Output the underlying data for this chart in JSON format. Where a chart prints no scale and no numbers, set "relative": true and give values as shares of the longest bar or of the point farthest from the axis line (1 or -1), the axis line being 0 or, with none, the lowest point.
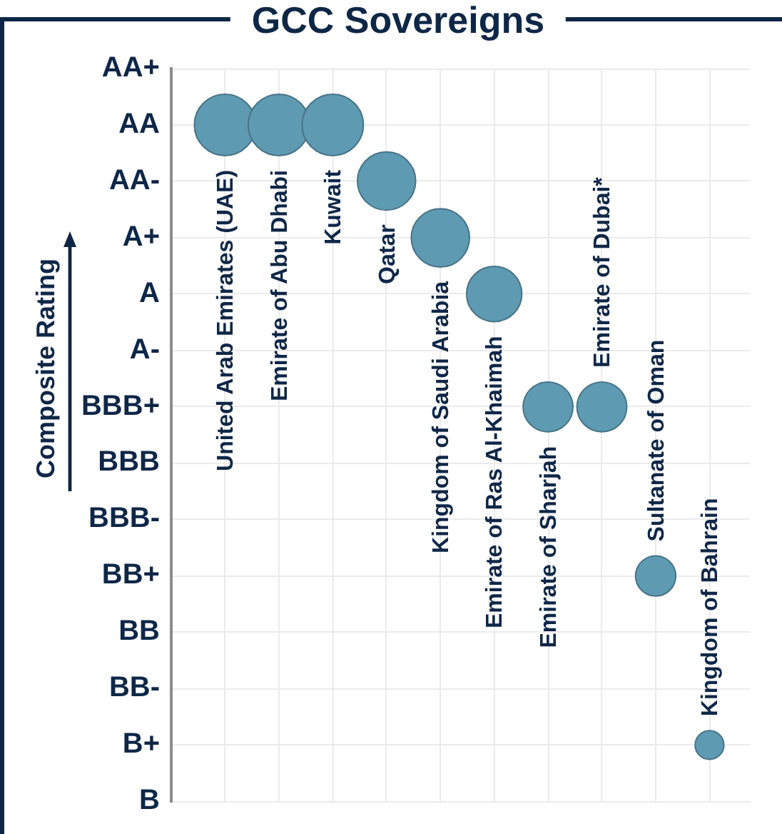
{
  "chart_data": {
    "type": "bubble",
    "title": "GCC Sovereigns",
    "ylabel": "Composite Rating",
    "relative": true,
    "categories": [
      "United Arab Emirates (UAE)",
      "Emirate of Abu Dhabi",
      "Kuwait",
      "Qatar",
      "Kingdom of Saudi Arabia",
      "Emirate of Ras Al-Khaimah",
      "Emirate of Sharjah",
      "Emirate of Dubai*",
      "Sultanate of Oman",
      "Kingdom of Bahrain"
    ],
    "y_categories": [
      "AA+",
      "AA",
      "AA-",
      "A+",
      "A",
      "A-",
      "BBB+",
      "BBB",
      "BBB-",
      "BB+",
      "BB",
      "BB-",
      "B+",
      "B"
    ],
    "values": [
      1,
      1,
      1,
      0.917,
      0.833,
      0.75,
      0.583,
      0.583,
      0.333,
      0.083
    ],
    "sizes": [
      1,
      1,
      1,
      0.9,
      0.9,
      0.81,
      0.66,
      0.66,
      0.43,
      0.22
    ],
    "color": "#5f9ab3",
    "grid": true
  }
}
